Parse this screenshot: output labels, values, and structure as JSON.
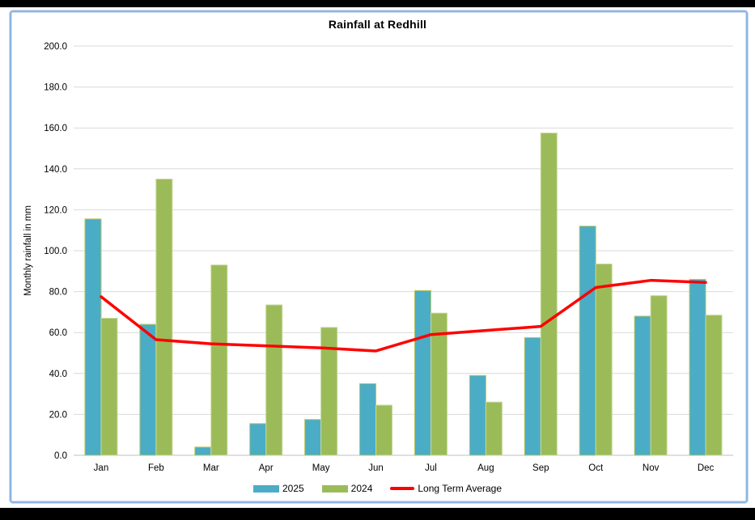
{
  "window": {
    "top_bar_color": "#000000",
    "bottom_bar_color": "#000000",
    "frame_border_color": "#8eb4e3",
    "background_color": "#ffffff"
  },
  "chart_data": {
    "type": "bar",
    "title": "Rainfall at Redhill",
    "xlabel": "",
    "ylabel": "Monthly rainfall in mm",
    "categories": [
      "Jan",
      "Feb",
      "Mar",
      "Apr",
      "May",
      "Jun",
      "Jul",
      "Aug",
      "Sep",
      "Oct",
      "Nov",
      "Dec"
    ],
    "series": [
      {
        "name": "2025",
        "type": "bar",
        "color": "#4bacc6",
        "border": "#b8c75a",
        "values": [
          115.5,
          64.0,
          4.0,
          15.5,
          17.5,
          35.0,
          80.5,
          39.0,
          57.5,
          112.0,
          68.0,
          86.0
        ]
      },
      {
        "name": "2024",
        "type": "bar",
        "color": "#9bbb59",
        "border": "#c6d89a",
        "values": [
          67.0,
          135.0,
          93.0,
          73.5,
          62.5,
          24.5,
          69.5,
          26.0,
          157.5,
          93.5,
          78.0,
          68.5
        ]
      },
      {
        "name": "Long Term Average",
        "type": "line",
        "color": "#ff0000",
        "values": [
          77.5,
          56.5,
          54.5,
          53.5,
          52.5,
          51.0,
          59.0,
          61.0,
          63.0,
          82.0,
          85.5,
          84.5
        ]
      }
    ],
    "ylim": [
      0,
      200
    ],
    "yticks": [
      0,
      20,
      40,
      60,
      80,
      100,
      120,
      140,
      160,
      180,
      200
    ],
    "ytick_decimals": 1,
    "grid": true,
    "gridline_color": "#d9d9d9",
    "baseline_color": "#bfbfbf",
    "text_color": "#000000",
    "legend_position": "bottom"
  }
}
